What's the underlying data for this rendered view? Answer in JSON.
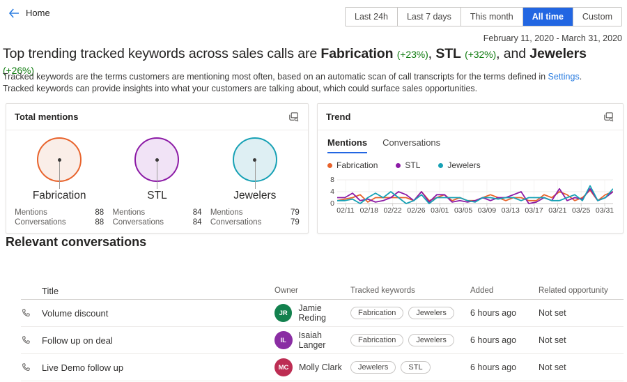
{
  "topbar": {
    "back_label": "Home",
    "filters": [
      {
        "label": "Last 24h",
        "active": false
      },
      {
        "label": "Last 7 days",
        "active": false
      },
      {
        "label": "This month",
        "active": false
      },
      {
        "label": "All time",
        "active": true
      },
      {
        "label": "Custom",
        "active": false
      }
    ],
    "accent_color": "#2266E2"
  },
  "date_range": "February 11, 2020 - March 31, 2020",
  "headline": {
    "segments": [
      {
        "text": "Top trending tracked keywords across sales calls are ",
        "style": "normal"
      },
      {
        "text": "Fabrication",
        "style": "bold"
      },
      {
        "text": " ",
        "style": "normal"
      },
      {
        "text": "(+23%)",
        "style": "green"
      },
      {
        "text": ", ",
        "style": "normal"
      },
      {
        "text": "STL",
        "style": "bold"
      },
      {
        "text": " ",
        "style": "normal"
      },
      {
        "text": "(+32%)",
        "style": "green"
      },
      {
        "text": ", and ",
        "style": "normal"
      },
      {
        "text": "Jewelers",
        "style": "bold"
      },
      {
        "text": " ",
        "style": "normal"
      },
      {
        "text": "(+26%)",
        "style": "green"
      }
    ],
    "change_color": "#107C10"
  },
  "description": {
    "line1_before_link": "Tracked keywords are the terms customers are mentioning most often, based on an automatic scan of call transcripts for the terms defined in ",
    "link": "Settings",
    "line1_after_link": ".",
    "line2": "Tracked keywords can provide insights into what your customers are talking about, which could surface sales opportunities."
  },
  "icons": {
    "back_arrow": "back-arrow-icon",
    "card_action": "card-details-magnifier-icon",
    "phone": "phone-call-icon"
  },
  "total_mentions_card": {
    "title": "Total mentions",
    "mentions_label": "Mentions",
    "conversations_label": "Conversations",
    "items": [
      {
        "keyword": "Fabrication",
        "mentions": "88",
        "conversations": "88",
        "color": "#E8632C",
        "fill": "#FAEEE8"
      },
      {
        "keyword": "STL",
        "mentions": "84",
        "conversations": "84",
        "color": "#8C1BA6",
        "fill": "#F1E3F6"
      },
      {
        "keyword": "Jewelers",
        "mentions": "79",
        "conversations": "79",
        "color": "#17A1B5",
        "fill": "#DEEFF3"
      }
    ]
  },
  "trend_card": {
    "title": "Trend",
    "tabs": [
      {
        "label": "Mentions",
        "active": true
      },
      {
        "label": "Conversations",
        "active": false
      }
    ]
  },
  "chart_data": {
    "type": "line",
    "title": "Trend",
    "xlabel": "",
    "ylabel": "",
    "ylim": [
      0,
      8
    ],
    "yticks": [
      0,
      4,
      8
    ],
    "grid": true,
    "legend_position": "top",
    "x_labels": [
      "02/11",
      "02/18",
      "02/22",
      "02/26",
      "03/01",
      "03/05",
      "03/09",
      "03/13",
      "03/17",
      "03/21",
      "03/25",
      "03/31"
    ],
    "series": [
      {
        "name": "Fabrication",
        "color": "#E8632C",
        "values": [
          1,
          1.5,
          2,
          3,
          0.5,
          2,
          2,
          2,
          2,
          2,
          1,
          4,
          1,
          2,
          3,
          1,
          2,
          1,
          1,
          2,
          3,
          2,
          1,
          2,
          2,
          1,
          1,
          3,
          2,
          4,
          3,
          1,
          2,
          4.5,
          1,
          3,
          4
        ]
      },
      {
        "name": "STL",
        "color": "#8C1BA6",
        "values": [
          2,
          2,
          3.5,
          1,
          1.5,
          0.5,
          1,
          2,
          4,
          3,
          1,
          4,
          0.5,
          3,
          3,
          0.5,
          1,
          0.5,
          1,
          2,
          1,
          2,
          2,
          3,
          4,
          0,
          0.5,
          2,
          1,
          5,
          1,
          2,
          1.5,
          5,
          1,
          2,
          4
        ]
      },
      {
        "name": "Jewelers",
        "color": "#17A1B5",
        "values": [
          1,
          1,
          1.5,
          0,
          2,
          3.5,
          2,
          4,
          2,
          0,
          1,
          3,
          0,
          2,
          2,
          2,
          2,
          1,
          0.5,
          2,
          2,
          1.5,
          2,
          2,
          1,
          2,
          2,
          2,
          1,
          1,
          2,
          3,
          1,
          6,
          1,
          2,
          5
        ]
      }
    ]
  },
  "conversations": {
    "heading": "Relevant conversations",
    "columns": [
      "Title",
      "Owner",
      "Tracked keywords",
      "Added",
      "Related opportunity"
    ],
    "rows": [
      {
        "title": "Volume discount",
        "owner": "Jamie Reding",
        "initials": "JR",
        "avatar_color": "#13814E",
        "keywords": [
          "Fabrication",
          "Jewelers"
        ],
        "added": "6 hours ago",
        "related": "Not set"
      },
      {
        "title": "Follow up on deal",
        "owner": "Isaiah Langer",
        "initials": "IL",
        "avatar_color": "#8A2DA3",
        "keywords": [
          "Fabrication",
          "Jewelers"
        ],
        "added": "6 hours ago",
        "related": "Not set"
      },
      {
        "title": "Live Demo follow up",
        "owner": "Molly Clark",
        "initials": "MC",
        "avatar_color": "#BD2D53",
        "keywords": [
          "Jewelers",
          "STL"
        ],
        "added": "6 hours ago",
        "related": "Not set"
      }
    ]
  }
}
